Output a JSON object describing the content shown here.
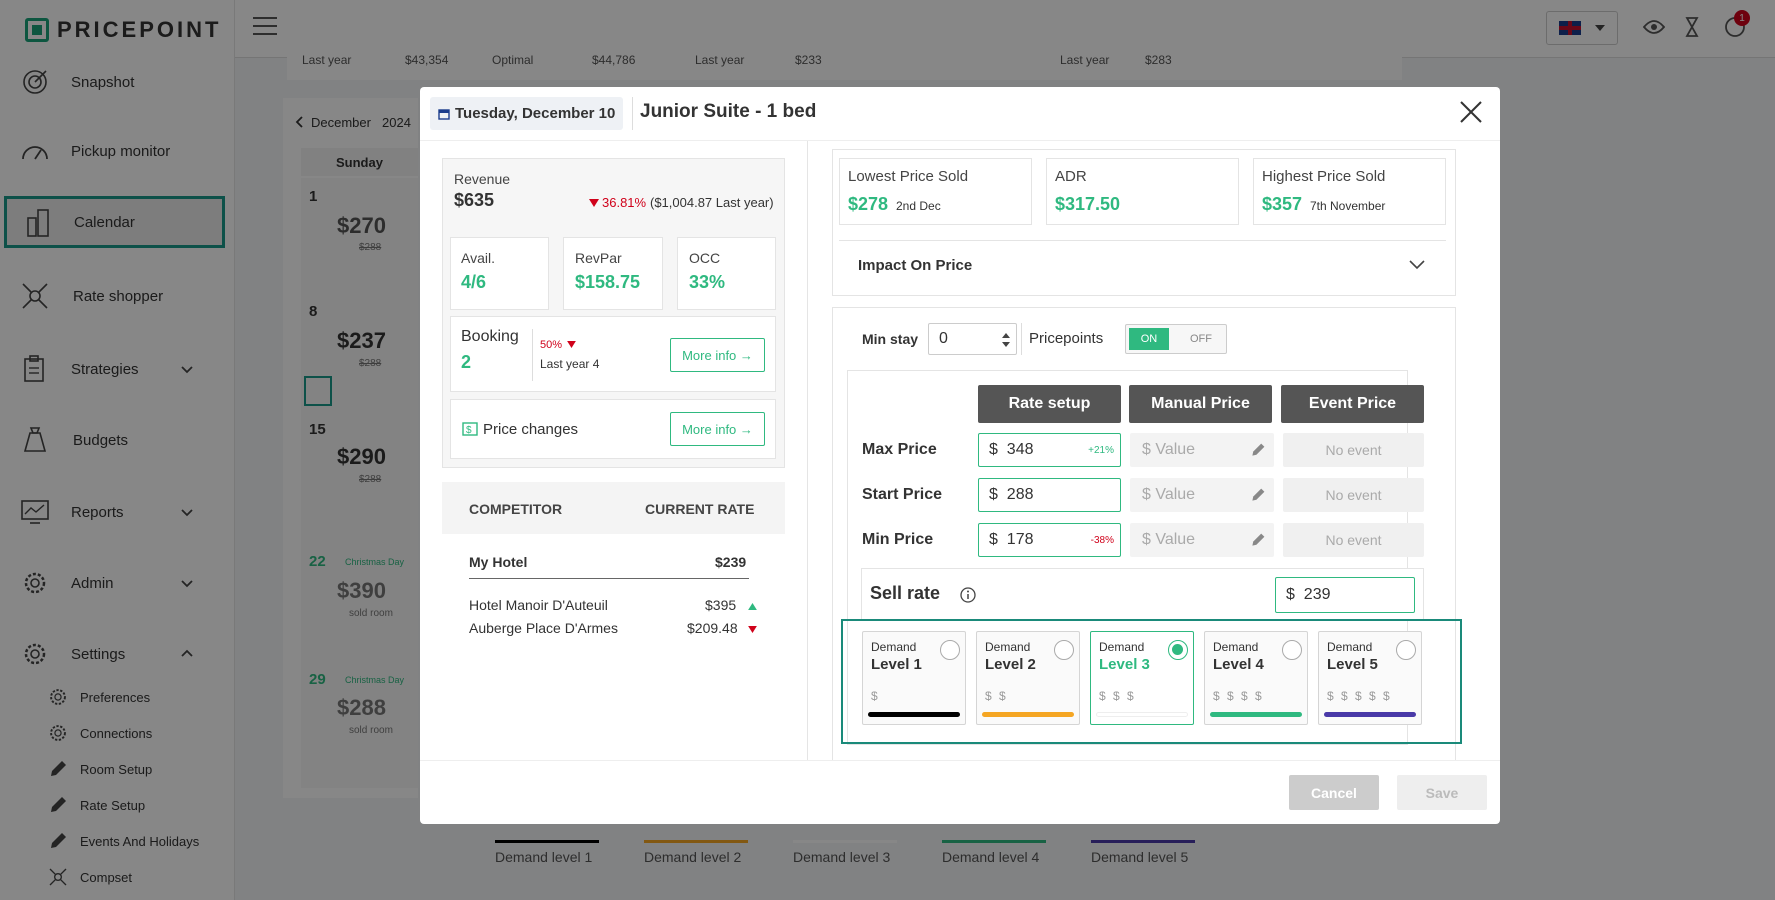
{
  "app": {
    "logo": "PRICEPOINT"
  },
  "sidebar": {
    "items": [
      {
        "label": "Snapshot",
        "icon": "target-icon"
      },
      {
        "label": "Pickup monitor",
        "icon": "gauge-icon"
      },
      {
        "label": "Calendar",
        "icon": "building-icon"
      },
      {
        "label": "Rate shopper",
        "icon": "network-icon"
      },
      {
        "label": "Strategies",
        "icon": "clipboard-icon"
      },
      {
        "label": "Budgets",
        "icon": "money-bag-icon"
      },
      {
        "label": "Reports",
        "icon": "chart-monitor-icon"
      },
      {
        "label": "Admin",
        "icon": "gear-icon"
      },
      {
        "label": "Settings",
        "icon": "gear-icon"
      }
    ],
    "sub_items": [
      {
        "label": "Preferences",
        "icon": "gear-icon"
      },
      {
        "label": "Connections",
        "icon": "gear-icon"
      },
      {
        "label": "Room Setup",
        "icon": "pencil-icon"
      },
      {
        "label": "Rate Setup",
        "icon": "pencil-icon"
      },
      {
        "label": "Events And Holidays",
        "icon": "pencil-icon"
      },
      {
        "label": "Compset",
        "icon": "network-icon"
      }
    ]
  },
  "topbar": {
    "notification_count": "1",
    "language": "EN-GB"
  },
  "background": {
    "summary": [
      {
        "label": "Last year",
        "value": "$43,354"
      },
      {
        "label": "Optimal",
        "value": "$44,786"
      },
      {
        "label": "Last year",
        "value": "$233"
      },
      {
        "label": "Last year",
        "value": "$283"
      }
    ],
    "calendar": {
      "month": "December",
      "year": "2024",
      "weekday": "Sunday",
      "days": [
        {
          "day": "1",
          "price": "$270",
          "old": "$288",
          "note": ""
        },
        {
          "day": "8",
          "price": "$237",
          "old": "$288",
          "note": ""
        },
        {
          "day": "15",
          "price": "$290",
          "old": "$288",
          "note": ""
        },
        {
          "day": "22",
          "holiday": "Christmas Day",
          "price": "$390",
          "old": "sold room"
        },
        {
          "day": "29",
          "holiday": "Christmas Day",
          "price": "$288",
          "old": "sold room"
        }
      ]
    },
    "legend": [
      "Demand level 1",
      "Demand level 2",
      "Demand level 3",
      "Demand level 4",
      "Demand level 5"
    ]
  },
  "modal": {
    "date": "Tuesday, December 10",
    "room": "Junior Suite - 1 bed",
    "revenue": {
      "label": "Revenue",
      "value": "$635",
      "change": "36.81%",
      "last_year": "($1,004.87 Last year)"
    },
    "avail": {
      "label": "Avail.",
      "value": "4/6"
    },
    "revpar": {
      "label": "RevPar",
      "value": "$158.75"
    },
    "occ": {
      "label": "OCC",
      "value": "33%"
    },
    "booking": {
      "label": "Booking",
      "value": "2",
      "change": "50%",
      "last_year": "Last year 4",
      "more": "More info →"
    },
    "price_changes": {
      "label": "Price changes",
      "more": "More info →"
    },
    "competitors": {
      "header_name": "COMPETITOR",
      "header_rate": "CURRENT RATE",
      "mine": {
        "name": "My Hotel",
        "rate": "$239"
      },
      "rows": [
        {
          "name": "Hotel Manoir D'Auteuil",
          "rate": "$395",
          "trend": "up"
        },
        {
          "name": "Auberge Place D'Armes",
          "rate": "$209.48",
          "trend": "down"
        }
      ]
    },
    "stats": {
      "lowest": {
        "label": "Lowest Price Sold",
        "value": "$278",
        "date": "2nd Dec"
      },
      "adr": {
        "label": "ADR",
        "value": "$317.50"
      },
      "highest": {
        "label": "Highest Price Sold",
        "value": "$357",
        "date": "7th November"
      }
    },
    "impact": {
      "label": "Impact On Price"
    },
    "min_stay": {
      "label": "Min stay",
      "value": "0"
    },
    "pricepoints": {
      "label": "Pricepoints",
      "on": "ON",
      "off": "OFF"
    },
    "tabs": {
      "rate": "Rate setup",
      "manual": "Manual Price",
      "event": "Event Price"
    },
    "rows": {
      "max": {
        "label": "Max Price",
        "currency": "$",
        "value": "348",
        "pct": "+21%",
        "manual_placeholder": "$ Value",
        "event": "No event"
      },
      "start": {
        "label": "Start Price",
        "currency": "$",
        "value": "288",
        "pct": "",
        "manual_placeholder": "$ Value",
        "event": "No event"
      },
      "min": {
        "label": "Min Price",
        "currency": "$",
        "value": "178",
        "pct": "-38%",
        "manual_placeholder": "$ Value",
        "event": "No event"
      }
    },
    "sell_rate": {
      "label": "Sell rate",
      "currency": "$",
      "value": "239"
    },
    "levels": [
      {
        "t1": "Demand",
        "t2": "Level 1",
        "dollars": "$",
        "color": "#000000"
      },
      {
        "t1": "Demand",
        "t2": "Level 2",
        "dollars": "$ $",
        "color": "#f5a623"
      },
      {
        "t1": "Demand",
        "t2": "Level 3",
        "dollars": "$ $ $",
        "color": "#ffffff"
      },
      {
        "t1": "Demand",
        "t2": "Level 4",
        "dollars": "$ $ $ $",
        "color": "#2fb980"
      },
      {
        "t1": "Demand",
        "t2": "Level 5",
        "dollars": "$ $ $ $ $",
        "color": "#4a3aa8"
      }
    ],
    "selected_level": "Level 3",
    "footer": {
      "cancel": "Cancel",
      "save": "Save"
    }
  }
}
